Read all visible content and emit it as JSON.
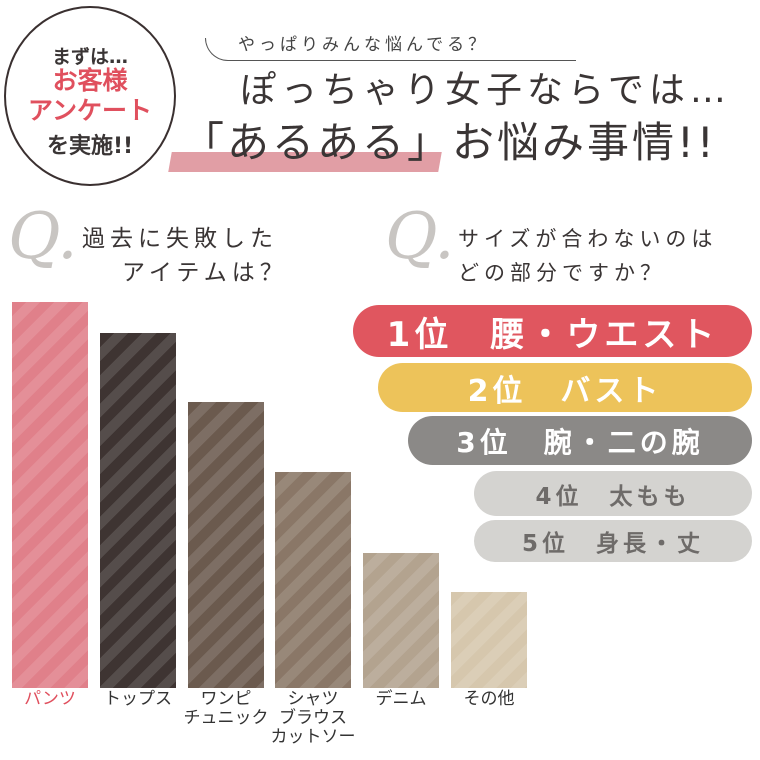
{
  "badge": {
    "line1": "まずは…",
    "line2": "お客様",
    "line3": "アンケート",
    "line4": "を実施!!"
  },
  "header": {
    "subtitle": "やっぱりみんな悩んでる？",
    "title1": "ぽっちゃり女子ならでは…",
    "title2": "「あるある」お悩み事情!!"
  },
  "q1": {
    "mark": "Q.",
    "line1": "過去に失敗した",
    "line2": "アイテムは？"
  },
  "q2": {
    "mark": "Q.",
    "line1": "サイズが合わないのは",
    "line2": "どの部分ですか？"
  },
  "chart_data": {
    "type": "bar",
    "categories": [
      "パンツ",
      "トップス",
      "ワンピ チュニック",
      "シャツ ブラウス カットソー",
      "デニム",
      "その他"
    ],
    "labels": [
      [
        "パンツ"
      ],
      [
        "トップス"
      ],
      [
        "ワンピ",
        "チュニック"
      ],
      [
        "シャツ",
        "ブラウス",
        "カットソー"
      ],
      [
        "デニム"
      ],
      [
        "その他"
      ]
    ],
    "values": [
      100,
      92,
      74,
      56,
      35,
      25
    ],
    "colors": [
      "#e0808a",
      "#3e3432",
      "#6b5a4e",
      "#8a7767",
      "#b3a38f",
      "#d6c7ad"
    ],
    "label_colors": [
      "#e0505e",
      "#333",
      "#333",
      "#333",
      "#333",
      "#333"
    ]
  },
  "ranking": [
    {
      "text": "1位　腰・ウエスト",
      "color": "#e0565f",
      "text_color": "#ffffff"
    },
    {
      "text": "2位　バスト",
      "color": "#edc35a",
      "text_color": "#ffffff"
    },
    {
      "text": "3位　腕・二の腕",
      "color": "#8b8987",
      "text_color": "#ffffff"
    },
    {
      "text": "4位　太もも",
      "color": "#d4d3d0",
      "text_color": "#6e6b69"
    },
    {
      "text": "5位　身長・丈",
      "color": "#d4d3d0",
      "text_color": "#6e6b69"
    }
  ]
}
